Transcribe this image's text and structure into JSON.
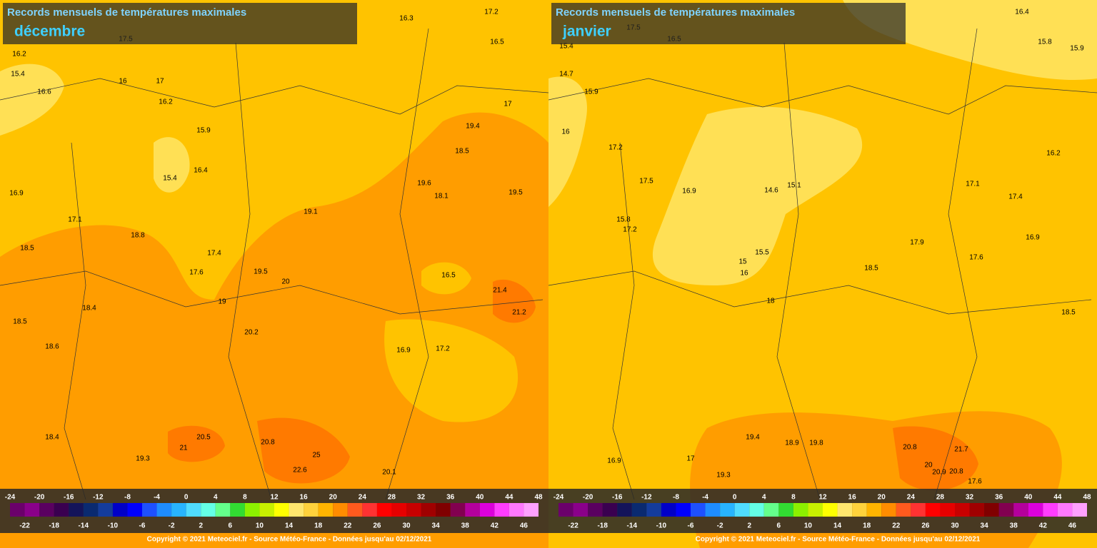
{
  "panels": [
    {
      "title": "Records mensuels de températures maximales",
      "month": "décembre",
      "stations": [
        17.5,
        16.2,
        15.4,
        16.6,
        16,
        17,
        16.2,
        15.9,
        16.4,
        15.4,
        16.9,
        17.1,
        18.5,
        18.8,
        17.4,
        17.6,
        18.5,
        18.4,
        18.6,
        19,
        20.2,
        20,
        19.5,
        19.1,
        19.6,
        18.1,
        19.5,
        21.4,
        21.2,
        19.4,
        18.5,
        20.5,
        21,
        20.8,
        22.6,
        25,
        20.1,
        19.3,
        18.4,
        16.9,
        17.2,
        16.5,
        17,
        17.2,
        16.5,
        16.3
      ],
      "legend": {
        "top": [
          -24,
          -20,
          -16,
          -12,
          -8,
          -4,
          0,
          4,
          8,
          12,
          16,
          20,
          24,
          28,
          32,
          36,
          40,
          44,
          48
        ],
        "bottom": [
          -22,
          -18,
          -14,
          -10,
          -6,
          -2,
          2,
          6,
          10,
          14,
          18,
          22,
          26,
          30,
          34,
          38,
          42,
          46
        ]
      },
      "copyright": "Copyright © 2021 Meteociel.fr - Source Météo-France - Données jusqu'au 02/12/2021"
    },
    {
      "title": "Records mensuels de températures maximales",
      "month": "janvier",
      "stations": [
        17.5,
        16.5,
        15.4,
        14.7,
        15.9,
        16,
        17.2,
        17.5,
        15.8,
        17.2,
        16.9,
        14.6,
        15.1,
        15.5,
        15,
        16,
        18,
        18.5,
        17.9,
        17.6,
        16.9,
        17.4,
        17.1,
        16.2,
        15.8,
        15.9,
        16.4,
        19.4,
        18.9,
        19.8,
        20.8,
        21.7,
        20,
        20.9,
        20.8,
        17.6,
        19.3,
        16.9,
        17,
        18.5
      ],
      "legend": {
        "top": [
          -24,
          -20,
          -16,
          -12,
          -8,
          -4,
          0,
          4,
          8,
          12,
          16,
          20,
          24,
          28,
          32,
          36,
          40,
          44,
          48
        ],
        "bottom": [
          -22,
          -18,
          -14,
          -10,
          -6,
          -2,
          2,
          6,
          10,
          14,
          18,
          22,
          26,
          30,
          34,
          38,
          42,
          46
        ]
      },
      "copyright": "Copyright © 2021 Meteociel.fr - Source Météo-France - Données jusqu'au 02/12/2021"
    }
  ]
}
